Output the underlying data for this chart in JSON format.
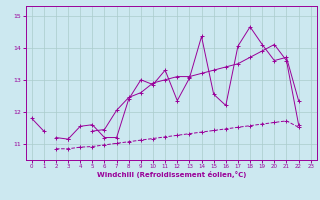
{
  "xlabel": "Windchill (Refroidissement éolien,°C)",
  "background_color": "#cce8f0",
  "grid_color": "#aacccc",
  "line_color": "#990099",
  "xlim": [
    -0.5,
    23.5
  ],
  "ylim": [
    10.5,
    15.3
  ],
  "yticks": [
    11,
    12,
    13,
    14,
    15
  ],
  "xticks": [
    0,
    1,
    2,
    3,
    4,
    5,
    6,
    7,
    8,
    9,
    10,
    11,
    12,
    13,
    14,
    15,
    16,
    17,
    18,
    19,
    20,
    21,
    22,
    23
  ],
  "x": [
    0,
    1,
    2,
    3,
    4,
    5,
    6,
    7,
    8,
    9,
    10,
    11,
    12,
    13,
    14,
    15,
    16,
    17,
    18,
    19,
    20,
    21,
    22,
    23
  ],
  "line1": [
    11.8,
    11.4,
    null,
    11.15,
    11.55,
    11.6,
    11.2,
    11.2,
    12.4,
    13.0,
    12.85,
    13.3,
    12.35,
    13.05,
    14.35,
    12.55,
    12.2,
    14.05,
    14.65,
    14.1,
    13.6,
    13.7,
    12.35,
    null
  ],
  "line2": [
    null,
    null,
    11.2,
    11.15,
    null,
    11.4,
    11.45,
    12.05,
    12.45,
    12.6,
    12.9,
    13.0,
    13.1,
    13.1,
    13.2,
    13.3,
    13.4,
    13.5,
    13.7,
    13.9,
    14.1,
    13.6,
    11.6,
    null
  ],
  "line3": [
    null,
    null,
    10.85,
    10.85,
    10.9,
    10.92,
    10.97,
    11.02,
    11.07,
    11.12,
    11.17,
    11.22,
    11.27,
    11.32,
    11.37,
    11.42,
    11.47,
    11.52,
    11.57,
    11.62,
    11.67,
    11.72,
    11.52,
    null
  ]
}
